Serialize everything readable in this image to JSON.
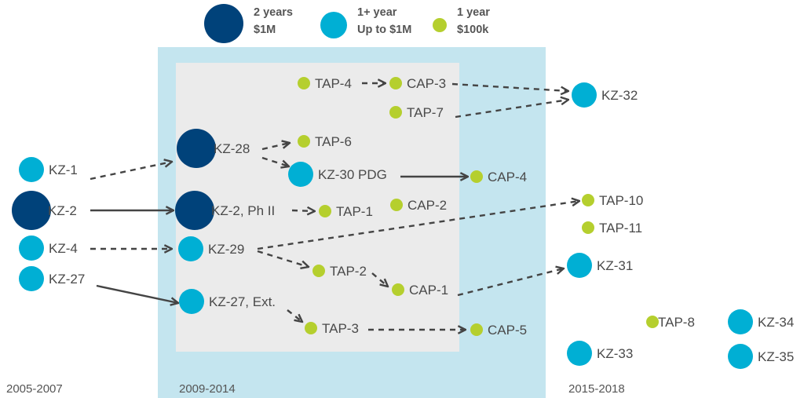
{
  "colors": {
    "large": "#00427a",
    "medium": "#00afd4",
    "small": "#b5cf2e",
    "edge": "#444444",
    "panel_outer": "#c4e5ef",
    "panel_inner": "#ebebeb"
  },
  "legend": [
    {
      "size": "large",
      "line1": "2 years",
      "line2": "$1M"
    },
    {
      "size": "medium",
      "line1": "1+ year",
      "line2": "Up to $1M"
    },
    {
      "size": "small",
      "line1": "1 year",
      "line2": "$100k"
    }
  ],
  "periods": [
    "2005-2007",
    "2009-2014",
    "2015-2018"
  ],
  "nodes": [
    {
      "id": "kz1",
      "label": "KZ-1",
      "size": "medium",
      "period": 0
    },
    {
      "id": "kz2",
      "label": "KZ-2",
      "size": "large",
      "period": 0
    },
    {
      "id": "kz4",
      "label": "KZ-4",
      "size": "medium",
      "period": 0
    },
    {
      "id": "kz27",
      "label": "KZ-27",
      "size": "medium",
      "period": 0
    },
    {
      "id": "kz28",
      "label": "KZ-28",
      "size": "large",
      "period": 1
    },
    {
      "id": "kz2ph2",
      "label": "KZ-2, Ph II",
      "size": "large",
      "period": 1
    },
    {
      "id": "kz29",
      "label": "KZ-29",
      "size": "medium",
      "period": 1
    },
    {
      "id": "kz27ext",
      "label": "KZ-27, Ext.",
      "size": "medium",
      "period": 1
    },
    {
      "id": "kz30",
      "label": "KZ-30 PDG",
      "size": "medium",
      "period": 1
    },
    {
      "id": "tap4",
      "label": "TAP-4",
      "size": "small",
      "period": 1
    },
    {
      "id": "cap3",
      "label": "CAP-3",
      "size": "small",
      "period": 1
    },
    {
      "id": "tap7",
      "label": "TAP-7",
      "size": "small",
      "period": 1
    },
    {
      "id": "tap6",
      "label": "TAP-6",
      "size": "small",
      "period": 1
    },
    {
      "id": "tap1",
      "label": "TAP-1",
      "size": "small",
      "period": 1
    },
    {
      "id": "cap2",
      "label": "CAP-2",
      "size": "small",
      "period": 1
    },
    {
      "id": "tap2",
      "label": "TAP-2",
      "size": "small",
      "period": 1
    },
    {
      "id": "cap1",
      "label": "CAP-1",
      "size": "small",
      "period": 1
    },
    {
      "id": "tap3",
      "label": "TAP-3",
      "size": "small",
      "period": 1
    },
    {
      "id": "cap4",
      "label": "CAP-4",
      "size": "small",
      "period": 1
    },
    {
      "id": "cap5",
      "label": "CAP-5",
      "size": "small",
      "period": 1
    },
    {
      "id": "kz32",
      "label": "KZ-32",
      "size": "medium",
      "period": 2
    },
    {
      "id": "tap10",
      "label": "TAP-10",
      "size": "small",
      "period": 2
    },
    {
      "id": "tap11",
      "label": "TAP-11",
      "size": "small",
      "period": 2
    },
    {
      "id": "kz31",
      "label": "KZ-31",
      "size": "medium",
      "period": 2
    },
    {
      "id": "tap8",
      "label": "TAP-8",
      "size": "small",
      "period": 2
    },
    {
      "id": "kz33",
      "label": "KZ-33",
      "size": "medium",
      "period": 2
    },
    {
      "id": "kz34",
      "label": "KZ-34",
      "size": "medium",
      "period": 2
    },
    {
      "id": "kz35",
      "label": "KZ-35",
      "size": "medium",
      "period": 2
    }
  ],
  "edges": [
    {
      "from": "kz1",
      "to": "kz28",
      "style": "dashed"
    },
    {
      "from": "kz2",
      "to": "kz2ph2",
      "style": "solid"
    },
    {
      "from": "kz4",
      "to": "kz29",
      "style": "dashed"
    },
    {
      "from": "kz27",
      "to": "kz27ext",
      "style": "solid"
    },
    {
      "from": "kz28",
      "to": "tap6",
      "style": "dashed"
    },
    {
      "from": "kz28",
      "to": "kz30",
      "style": "dashed"
    },
    {
      "from": "kz30",
      "to": "cap4",
      "style": "solid"
    },
    {
      "from": "tap4",
      "to": "cap3",
      "style": "dashed"
    },
    {
      "from": "cap3",
      "to": "kz32",
      "style": "dashed"
    },
    {
      "from": "tap7",
      "to": "kz32",
      "style": "dashed"
    },
    {
      "from": "kz2ph2",
      "to": "tap1",
      "style": "dashed"
    },
    {
      "from": "kz29",
      "to": "tap10",
      "style": "dashed"
    },
    {
      "from": "kz29",
      "to": "tap2",
      "style": "dashed"
    },
    {
      "from": "tap2",
      "to": "cap1",
      "style": "dashed"
    },
    {
      "from": "cap1",
      "to": "kz31",
      "style": "dashed"
    },
    {
      "from": "kz27ext",
      "to": "tap3",
      "style": "dashed"
    },
    {
      "from": "tap3",
      "to": "cap5",
      "style": "dashed"
    }
  ]
}
